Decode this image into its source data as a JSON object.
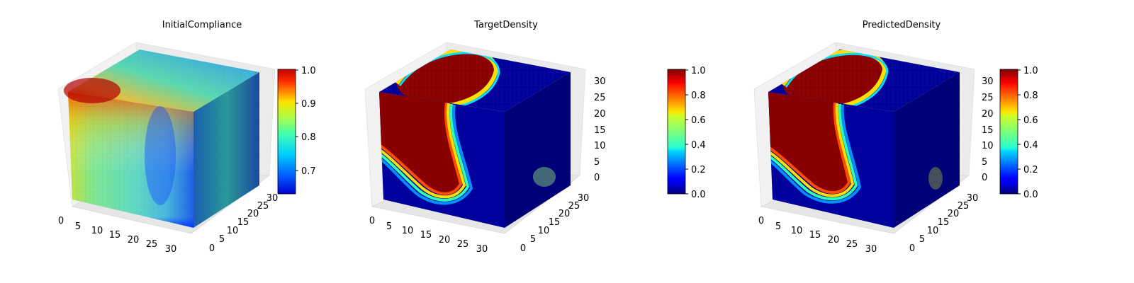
{
  "chart_data": [
    {
      "type": "heatmap",
      "title": "InitialCompliance",
      "axis_ticks": {
        "x": [
          "0",
          "5",
          "10",
          "15",
          "20",
          "25",
          "30"
        ],
        "y": [
          "0",
          "5",
          "10",
          "15",
          "20",
          "25",
          "30"
        ],
        "z": []
      },
      "colorbar": {
        "min": 0.64,
        "max": 1.0,
        "ticks": [
          "0.7",
          "0.8",
          "0.9",
          "1.0"
        ],
        "tick_values": [
          0.7,
          0.8,
          0.9,
          1.0
        ],
        "colormap": "jet"
      },
      "grid": true,
      "value_range": [
        0.64,
        1.0
      ]
    },
    {
      "type": "heatmap",
      "title": "TargetDensity",
      "axis_ticks": {
        "x": [
          "0",
          "5",
          "10",
          "15",
          "20",
          "25",
          "30"
        ],
        "y": [
          "0",
          "5",
          "10",
          "15",
          "20",
          "25",
          "30"
        ],
        "z": [
          "0",
          "5",
          "10",
          "15",
          "20",
          "25",
          "30"
        ]
      },
      "colorbar": {
        "min": 0.0,
        "max": 1.0,
        "ticks": [
          "0.0",
          "0.2",
          "0.4",
          "0.6",
          "0.8",
          "1.0"
        ],
        "tick_values": [
          0.0,
          0.2,
          0.4,
          0.6,
          0.8,
          1.0
        ],
        "colormap": "jet"
      },
      "grid": true,
      "value_range": [
        0.0,
        1.0
      ]
    },
    {
      "type": "heatmap",
      "title": "PredictedDensity",
      "axis_ticks": {
        "x": [
          "0",
          "5",
          "10",
          "15",
          "20",
          "25",
          "30"
        ],
        "y": [
          "0",
          "5",
          "10",
          "15",
          "20",
          "25",
          "30"
        ],
        "z": [
          "0",
          "5",
          "10",
          "15",
          "20",
          "25",
          "30"
        ]
      },
      "colorbar": {
        "min": 0.0,
        "max": 1.0,
        "ticks": [
          "0.0",
          "0.2",
          "0.4",
          "0.6",
          "0.8",
          "1.0"
        ],
        "tick_values": [
          0.0,
          0.2,
          0.4,
          0.6,
          0.8,
          1.0
        ],
        "colormap": "jet"
      },
      "grid": true,
      "value_range": [
        0.0,
        1.0
      ]
    }
  ]
}
